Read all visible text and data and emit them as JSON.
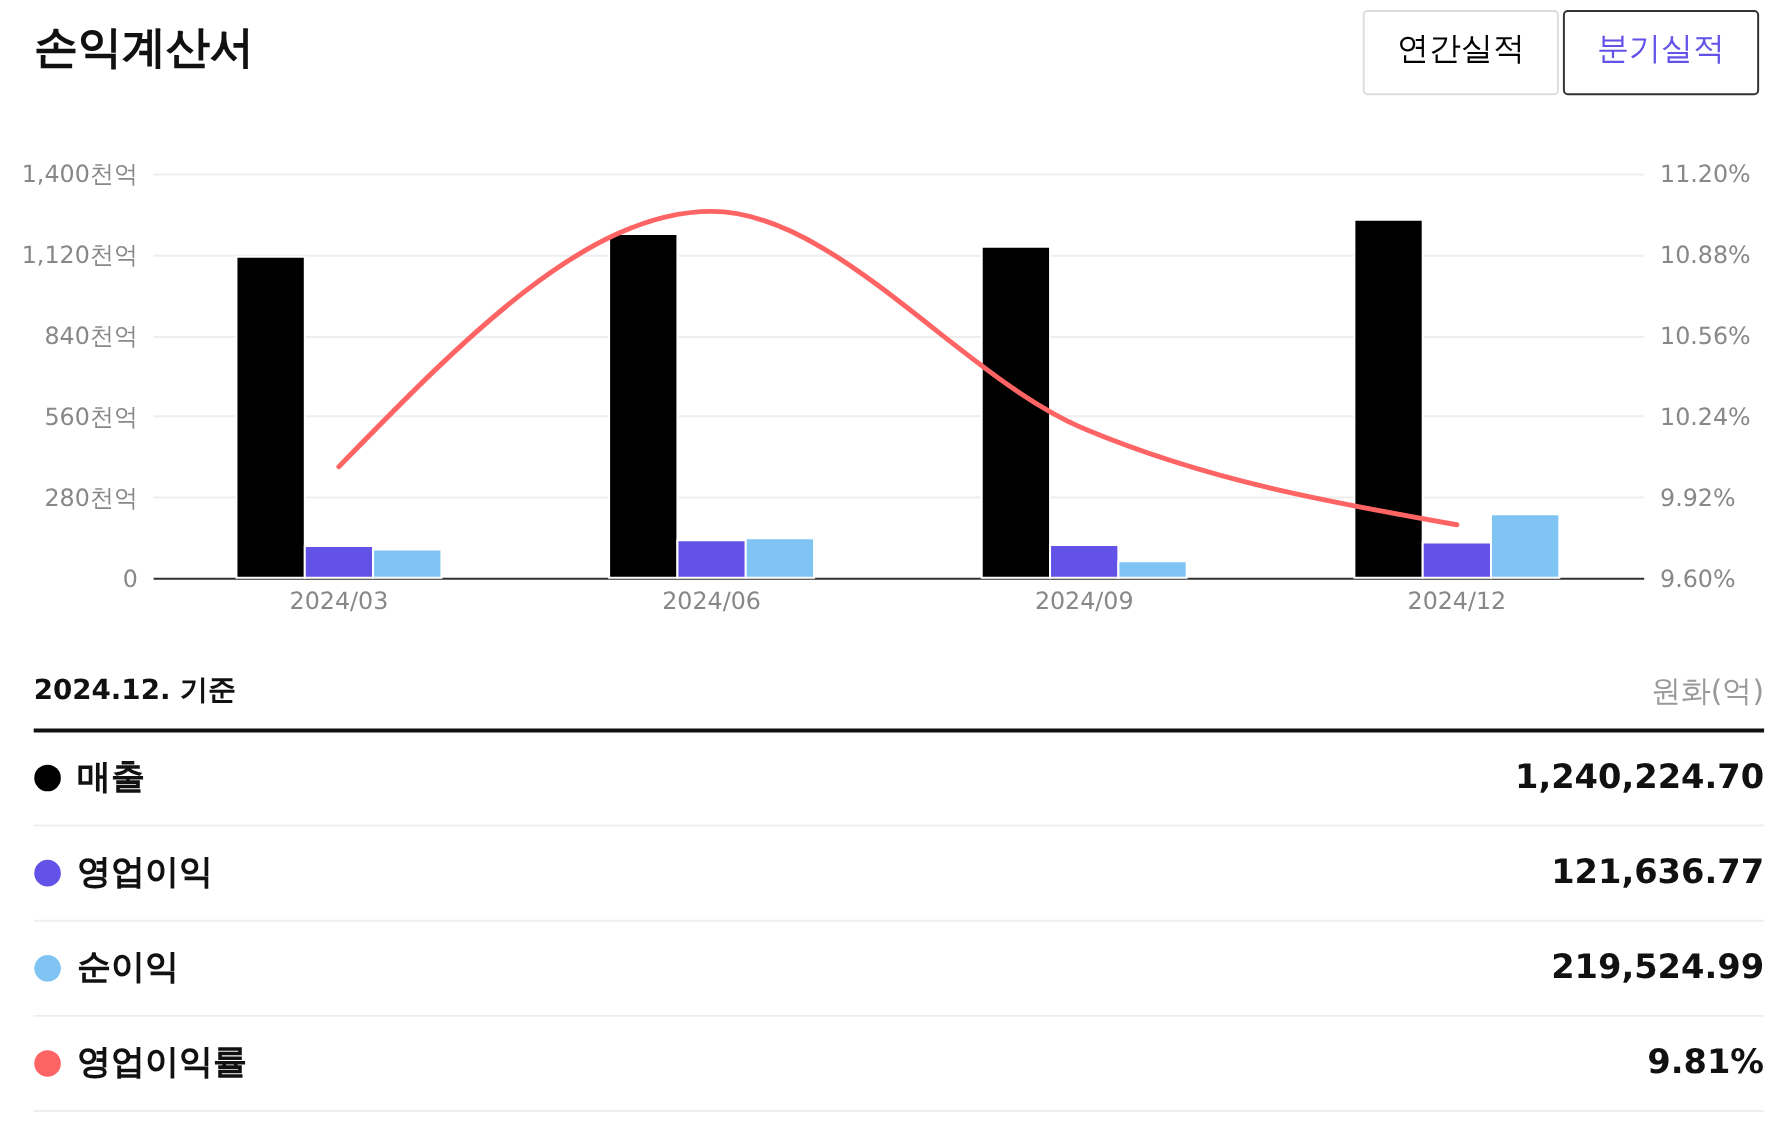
{
  "chart_data": {
    "type": "bar",
    "title": "손익계산서",
    "categories": [
      "2024/03",
      "2024/06",
      "2024/09",
      "2024/12"
    ],
    "series": [
      {
        "name": "매출",
        "color": "#000000",
        "values": [
          1112,
          1190,
          1146,
          1240
        ]
      },
      {
        "name": "영업이익",
        "color": "#6352e8",
        "values": [
          110,
          130,
          114,
          122
        ]
      },
      {
        "name": "순이익",
        "color": "#80c4f4",
        "values": [
          98,
          137,
          57,
          220
        ]
      },
      {
        "name": "영업이익률",
        "type": "line",
        "axis": "y2",
        "color": "#ff6464",
        "values": [
          10.04,
          11.05,
          10.19,
          9.81
        ]
      }
    ],
    "ylim": [
      0,
      1400
    ],
    "yticks": [
      {
        "value": 0,
        "label": "0"
      },
      {
        "value": 280,
        "label": "280천억"
      },
      {
        "value": 560,
        "label": "560천억"
      },
      {
        "value": 840,
        "label": "840천억"
      },
      {
        "value": 1120,
        "label": "1,120천억"
      },
      {
        "value": 1400,
        "label": "1,400천억"
      }
    ],
    "y2lim": [
      9.6,
      11.2
    ],
    "y2ticks": [
      {
        "value": 9.6,
        "label": "9.60%"
      },
      {
        "value": 9.92,
        "label": "9.92%"
      },
      {
        "value": 10.24,
        "label": "10.24%"
      },
      {
        "value": 10.56,
        "label": "10.56%"
      },
      {
        "value": 10.88,
        "label": "10.88%"
      },
      {
        "value": 11.2,
        "label": "11.20%"
      }
    ],
    "grid": "y",
    "legend": "bottom",
    "annotations": [
      "연간실적",
      "분기실적",
      "2024.12. 기준",
      "원화(억)",
      "1,240,224.70",
      "121,636.77",
      "219,524.99",
      "9.81%"
    ]
  }
}
